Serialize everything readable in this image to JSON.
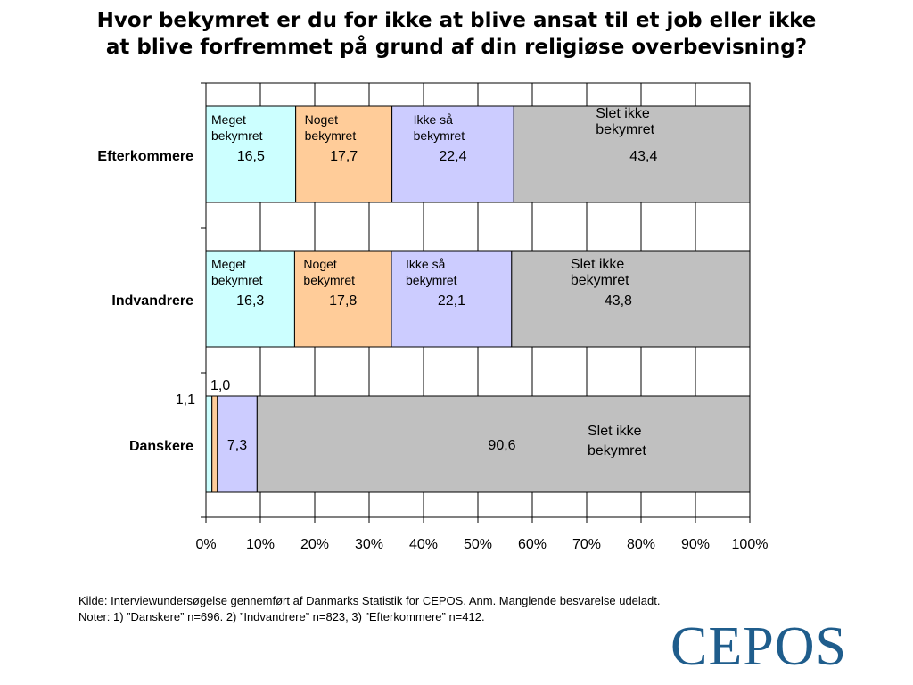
{
  "title": {
    "line1": "Hvor bekymret er du for ikke at blive ansat til et job eller ikke",
    "line2": "at blive forfremmet på grund af din religiøse overbevisning?"
  },
  "chart_data": {
    "type": "bar",
    "orientation": "horizontal",
    "stacked": "percent",
    "categories": [
      "Efterkommere",
      "Indvandrere",
      "Danskere"
    ],
    "series": [
      {
        "name": "Meget bekymret",
        "values": [
          16.5,
          16.3,
          1.1
        ],
        "labels": [
          "16,5",
          "16,3",
          "1,1"
        ],
        "color": "#ccffff"
      },
      {
        "name": "Noget bekymret",
        "values": [
          17.7,
          17.8,
          1.0
        ],
        "labels": [
          "17,7",
          "17,8",
          "1,0"
        ],
        "color": "#ffcc99"
      },
      {
        "name": "Ikke så bekymret",
        "values": [
          22.4,
          22.1,
          7.3
        ],
        "labels": [
          "22,4",
          "22,1",
          "7,3"
        ],
        "color": "#ccccff"
      },
      {
        "name": "Slet ikke bekymret",
        "values": [
          43.4,
          43.8,
          90.6
        ],
        "labels": [
          "43,4",
          "43,8",
          "90,6"
        ],
        "color": "#c0c0c0"
      }
    ],
    "xticks": [
      "0%",
      "10%",
      "20%",
      "30%",
      "40%",
      "50%",
      "60%",
      "70%",
      "80%",
      "90%",
      "100%"
    ],
    "xlim": [
      0,
      100
    ],
    "grid": "vertical",
    "inline_labels": {
      "Efterkommere": [
        [
          "Meget",
          "bekymret"
        ],
        [
          "Noget",
          "bekymret"
        ],
        [
          "Ikke så",
          "bekymret"
        ],
        [
          "Slet ikke",
          "bekymret"
        ]
      ],
      "Indvandrere": [
        [
          "Meget",
          "bekymret"
        ],
        [
          "Noget",
          "bekymret"
        ],
        [
          "Ikke så",
          "bekymret"
        ],
        [
          "Slet ikke",
          "bekymret"
        ]
      ],
      "Danskere": [
        [],
        [],
        [],
        [
          "Slet ikke",
          "bekymret"
        ]
      ]
    }
  },
  "footnote": {
    "line1": "Kilde: Interviewundersøgelse gennemført af Danmarks Statistik for CEPOS. Anm. Manglende besvarelse udeladt.",
    "line2": "Noter: 1) ”Danskere” n=696. 2) ”Indvandrere” n=823, 3) ”Efterkommere” n=412."
  },
  "logo": {
    "text": "CEPOS",
    "color": "#1f5d8c"
  }
}
